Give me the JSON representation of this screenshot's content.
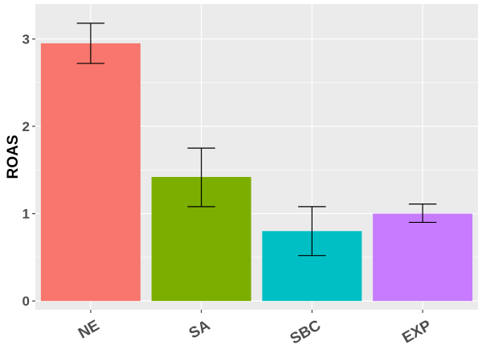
{
  "chart_data": {
    "type": "bar",
    "title": "",
    "xlabel": "",
    "ylabel": "ROAS",
    "categories": [
      "NE",
      "SA",
      "SBC",
      "EXP"
    ],
    "values": [
      2.95,
      1.42,
      0.8,
      1.0
    ],
    "error_low": [
      2.72,
      1.08,
      0.52,
      0.9
    ],
    "error_high": [
      3.18,
      1.75,
      1.08,
      1.11
    ],
    "colors": [
      "#F8766D",
      "#7CAE00",
      "#00BFC4",
      "#C77CFF"
    ],
    "yticks": [
      0,
      1,
      2,
      3
    ],
    "ylim": [
      -0.1,
      3.4
    ],
    "grid": true,
    "legend": "none",
    "panel_background": "#EBEBEB",
    "grid_color": "#FFFFFF"
  }
}
